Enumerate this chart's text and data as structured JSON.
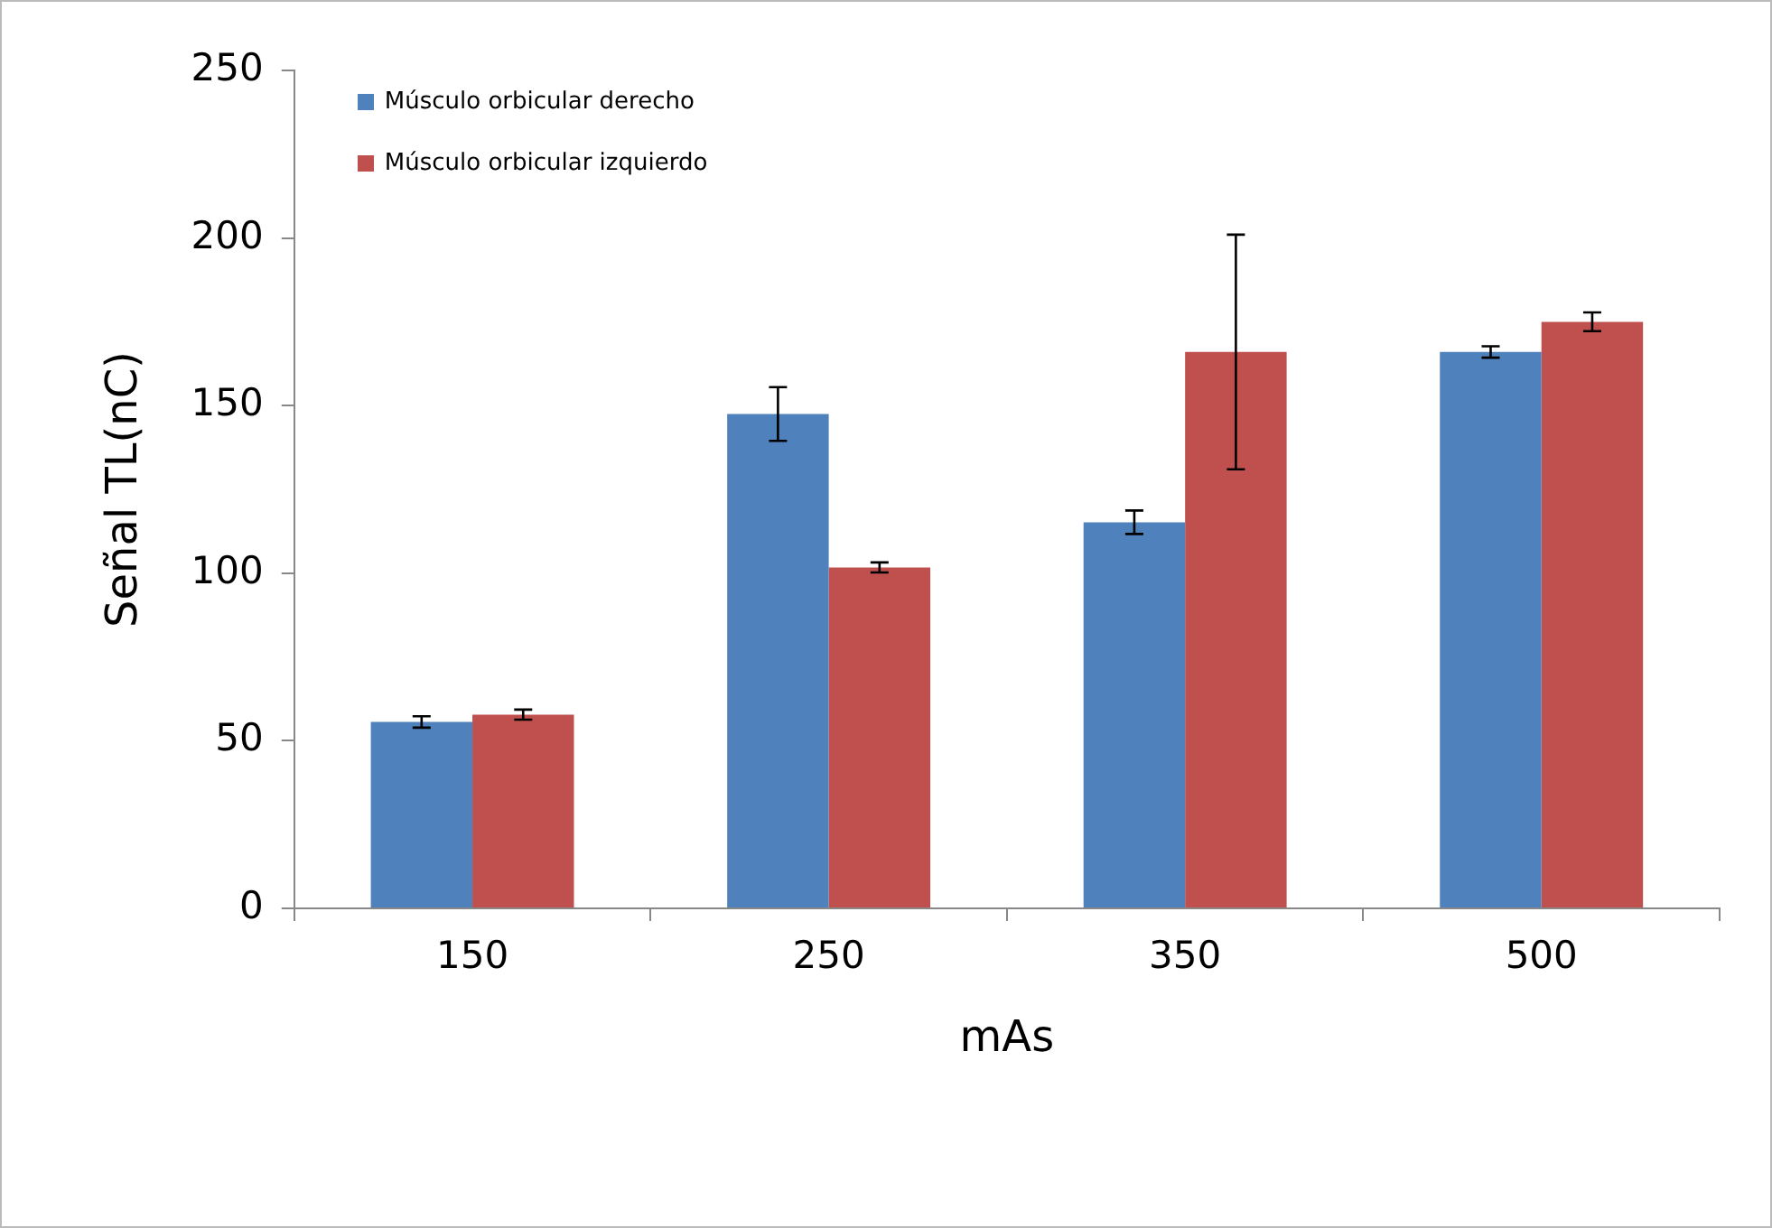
{
  "chart_data": {
    "type": "bar",
    "xlabel": "mAs",
    "ylabel": "Señal TL(nC)",
    "categories": [
      "150",
      "250",
      "350",
      "500"
    ],
    "series": [
      {
        "name": "Músculo orbicular derecho",
        "color": "#4f81bd",
        "values": [
          55.6,
          147.5,
          115.2,
          166
        ],
        "errors": [
          1.7,
          8,
          3.5,
          1.7
        ]
      },
      {
        "name": "Músculo orbicular izquierdo",
        "color": "#c0504d",
        "values": [
          57.8,
          101.7,
          166,
          175
        ],
        "errors": [
          1.5,
          1.5,
          35,
          2.8
        ]
      }
    ],
    "ylim": [
      0,
      250
    ],
    "yticks": [
      0,
      50,
      100,
      150,
      200,
      250
    ],
    "grid": false,
    "legend": "top left"
  }
}
